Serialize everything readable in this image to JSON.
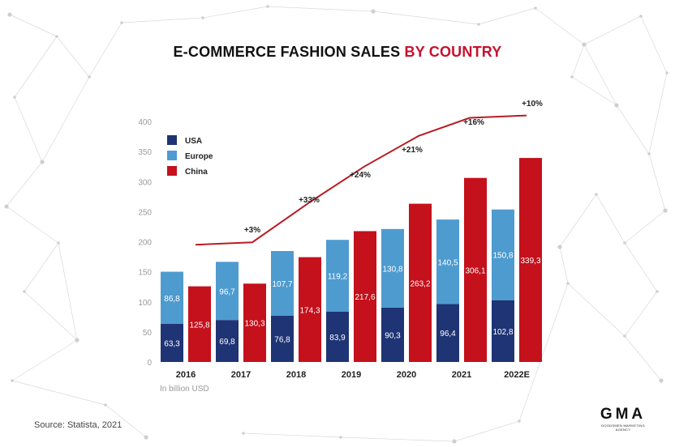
{
  "title": {
    "main": "E-COMMERCE FASHION SALES ",
    "accent": "BY COUNTRY"
  },
  "source": "Source: Statista, 2021",
  "logo": {
    "mark": "GMA",
    "sub": "GOODSMEN MARKETING AGENCY"
  },
  "colors": {
    "usa": "#1f3474",
    "europe": "#4e9bd0",
    "china": "#c4111c",
    "line": "#b81d24",
    "title_accent": "#c8102e"
  },
  "chart_data": {
    "type": "bar",
    "unit_note": "In billion USD",
    "categories": [
      "2016",
      "2017",
      "2018",
      "2019",
      "2020",
      "2021",
      "2022E"
    ],
    "ylim": [
      0,
      400
    ],
    "yticks": [
      0,
      50,
      100,
      150,
      200,
      250,
      300,
      350,
      400
    ],
    "legend": [
      "USA",
      "Europe",
      "China"
    ],
    "legend_position": "top-left",
    "series": [
      {
        "name": "USA",
        "stack": "usa-europe",
        "values": [
          63.3,
          69.8,
          76.8,
          83.9,
          90.3,
          96.4,
          102.8
        ],
        "labels": [
          "63,3",
          "69,8",
          "76,8",
          "83,9",
          "90,3",
          "96,4",
          "102,8"
        ]
      },
      {
        "name": "Europe",
        "stack": "usa-europe",
        "values": [
          86.8,
          96.7,
          107.7,
          119.2,
          130.8,
          140.5,
          150.8
        ],
        "labels": [
          "86,8",
          "96,7",
          "107,7",
          "119,2",
          "130,8",
          "140,5",
          "150,8"
        ]
      },
      {
        "name": "China",
        "stack": "china",
        "values": [
          125.8,
          130.3,
          174.3,
          217.6,
          263.2,
          306.1,
          339.3
        ],
        "labels": [
          "125,8",
          "130,3",
          "174,3",
          "217,6",
          "263,2",
          "306,1",
          "339,3"
        ]
      }
    ],
    "trend_line": {
      "values": [
        195,
        199,
        265,
        325,
        376,
        406
      ],
      "annotations": [
        "+3%",
        "+33%",
        "+24%",
        "+21%",
        "+16%",
        "+10%"
      ]
    }
  }
}
